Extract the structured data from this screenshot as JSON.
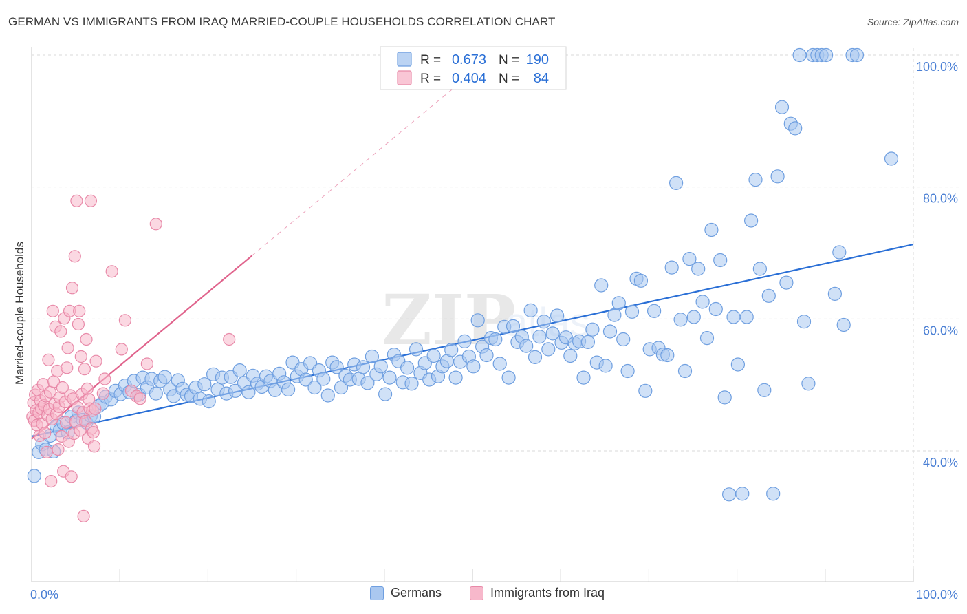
{
  "title": "GERMAN VS IMMIGRANTS FROM IRAQ MARRIED-COUPLE HOUSEHOLDS CORRELATION CHART",
  "source": "Source: ZipAtlas.com",
  "watermark": {
    "zip": "ZIP",
    "atlas": "atlas"
  },
  "legend": {
    "r_label": "R =",
    "n_label": "N =",
    "entries": [
      {
        "name": "Germans",
        "r": "0.673",
        "n": "190",
        "fill": "#aac8f0",
        "stroke": "#6f9fe0"
      },
      {
        "name": "Immigrants from Iraq",
        "r": "0.404",
        "n": "84",
        "fill": "#f7b8cb",
        "stroke": "#e889a8"
      }
    ]
  },
  "chart_data": {
    "type": "scatter",
    "title": "GERMAN VS IMMIGRANTS FROM IRAQ MARRIED-COUPLE HOUSEHOLDS CORRELATION CHART",
    "xlabel": "",
    "ylabel": "Married-couple Households",
    "xlim": [
      0,
      100
    ],
    "ylim": [
      20,
      102
    ],
    "x_tick_labels": [
      "0.0%",
      "100.0%"
    ],
    "y_ticks": [
      40,
      60,
      80,
      100
    ],
    "y_tick_labels": [
      "40.0%",
      "60.0%",
      "80.0%",
      "100.0%"
    ],
    "grid": true,
    "series": [
      {
        "name": "Germans",
        "color": "#6f9fe0",
        "fill": "#aac8f0",
        "trend_color": "#2a6fd6",
        "trend": {
          "x": [
            0,
            100
          ],
          "y": [
            42.2,
            71.3
          ]
        },
        "points": [
          [
            0.3,
            36.2
          ],
          [
            0.8,
            39.8
          ],
          [
            1.2,
            41.0
          ],
          [
            1.6,
            40.2
          ],
          [
            2.1,
            42.3
          ],
          [
            2.5,
            39.9
          ],
          [
            2.8,
            43.8
          ],
          [
            3.2,
            43.1
          ],
          [
            3.6,
            44.2
          ],
          [
            4.1,
            42.8
          ],
          [
            4.5,
            45.2
          ],
          [
            5.0,
            44.5
          ],
          [
            5.3,
            45.8
          ],
          [
            5.8,
            44.7
          ],
          [
            6.2,
            44.3
          ],
          [
            6.7,
            45.3
          ],
          [
            7.1,
            45.2
          ],
          [
            7.6,
            46.8
          ],
          [
            8.0,
            47.2
          ],
          [
            8.4,
            48.2
          ],
          [
            9.0,
            47.8
          ],
          [
            9.5,
            49.1
          ],
          [
            10.1,
            48.6
          ],
          [
            10.6,
            49.9
          ],
          [
            11.1,
            48.9
          ],
          [
            11.6,
            50.6
          ],
          [
            12.2,
            48.5
          ],
          [
            12.6,
            51.1
          ],
          [
            13.1,
            49.6
          ],
          [
            13.6,
            50.9
          ],
          [
            14.1,
            48.7
          ],
          [
            14.6,
            50.6
          ],
          [
            15.1,
            51.2
          ],
          [
            15.7,
            49.3
          ],
          [
            16.1,
            48.3
          ],
          [
            16.6,
            50.7
          ],
          [
            17.1,
            49.4
          ],
          [
            17.6,
            48.5
          ],
          [
            18.1,
            48.3
          ],
          [
            18.6,
            49.6
          ],
          [
            19.1,
            47.9
          ],
          [
            19.6,
            50.1
          ],
          [
            20.1,
            47.5
          ],
          [
            20.6,
            51.6
          ],
          [
            21.1,
            49.3
          ],
          [
            21.6,
            51.1
          ],
          [
            22.1,
            48.7
          ],
          [
            22.6,
            51.2
          ],
          [
            23.1,
            49.1
          ],
          [
            23.6,
            52.2
          ],
          [
            24.1,
            50.3
          ],
          [
            24.6,
            48.9
          ],
          [
            25.1,
            51.4
          ],
          [
            25.6,
            50.2
          ],
          [
            26.1,
            49.7
          ],
          [
            26.6,
            51.3
          ],
          [
            27.1,
            50.6
          ],
          [
            27.6,
            49.2
          ],
          [
            28.1,
            51.7
          ],
          [
            28.6,
            50.4
          ],
          [
            29.1,
            49.3
          ],
          [
            29.6,
            53.4
          ],
          [
            30.1,
            51.3
          ],
          [
            30.6,
            52.4
          ],
          [
            31.1,
            50.8
          ],
          [
            31.6,
            53.3
          ],
          [
            32.1,
            49.6
          ],
          [
            32.6,
            52.2
          ],
          [
            33.1,
            50.9
          ],
          [
            33.6,
            48.4
          ],
          [
            34.1,
            53.4
          ],
          [
            34.6,
            52.7
          ],
          [
            35.1,
            49.6
          ],
          [
            35.6,
            51.4
          ],
          [
            36.1,
            50.8
          ],
          [
            36.6,
            53.1
          ],
          [
            37.1,
            50.9
          ],
          [
            37.6,
            52.7
          ],
          [
            38.1,
            50.3
          ],
          [
            38.6,
            54.3
          ],
          [
            39.1,
            51.6
          ],
          [
            39.6,
            52.8
          ],
          [
            40.1,
            48.6
          ],
          [
            40.6,
            51.1
          ],
          [
            41.1,
            54.6
          ],
          [
            41.6,
            53.6
          ],
          [
            42.1,
            50.4
          ],
          [
            42.6,
            52.6
          ],
          [
            43.1,
            50.2
          ],
          [
            43.6,
            55.4
          ],
          [
            44.1,
            51.8
          ],
          [
            44.6,
            53.3
          ],
          [
            45.1,
            50.8
          ],
          [
            45.6,
            54.4
          ],
          [
            46.1,
            51.3
          ],
          [
            46.6,
            52.8
          ],
          [
            47.1,
            53.6
          ],
          [
            47.6,
            55.3
          ],
          [
            48.1,
            51.1
          ],
          [
            48.6,
            53.5
          ],
          [
            49.1,
            56.6
          ],
          [
            49.6,
            54.3
          ],
          [
            50.1,
            52.8
          ],
          [
            50.6,
            59.8
          ],
          [
            51.1,
            55.8
          ],
          [
            51.6,
            54.5
          ],
          [
            52.1,
            57.1
          ],
          [
            52.6,
            56.9
          ],
          [
            53.1,
            53.2
          ],
          [
            53.6,
            58.8
          ],
          [
            54.1,
            51.1
          ],
          [
            54.6,
            58.9
          ],
          [
            55.1,
            56.5
          ],
          [
            55.6,
            57.3
          ],
          [
            56.1,
            55.9
          ],
          [
            56.6,
            61.3
          ],
          [
            57.1,
            54.2
          ],
          [
            57.6,
            57.3
          ],
          [
            58.1,
            59.6
          ],
          [
            58.6,
            55.4
          ],
          [
            59.1,
            57.8
          ],
          [
            59.6,
            60.5
          ],
          [
            60.1,
            56.4
          ],
          [
            60.6,
            57.2
          ],
          [
            61.1,
            54.4
          ],
          [
            61.6,
            56.3
          ],
          [
            62.1,
            56.6
          ],
          [
            62.6,
            51.1
          ],
          [
            63.1,
            56.5
          ],
          [
            63.6,
            58.4
          ],
          [
            64.1,
            53.4
          ],
          [
            64.6,
            65.1
          ],
          [
            65.1,
            52.9
          ],
          [
            65.6,
            58.1
          ],
          [
            66.1,
            60.6
          ],
          [
            66.6,
            62.4
          ],
          [
            67.1,
            56.9
          ],
          [
            67.6,
            52.1
          ],
          [
            68.1,
            61.1
          ],
          [
            68.6,
            66.1
          ],
          [
            69.1,
            65.8
          ],
          [
            69.6,
            49.1
          ],
          [
            70.1,
            55.4
          ],
          [
            70.6,
            61.2
          ],
          [
            71.1,
            55.6
          ],
          [
            71.6,
            54.6
          ],
          [
            72.1,
            54.5
          ],
          [
            72.6,
            67.8
          ],
          [
            73.1,
            80.6
          ],
          [
            73.6,
            59.9
          ],
          [
            74.1,
            52.1
          ],
          [
            74.6,
            69.1
          ],
          [
            75.1,
            60.3
          ],
          [
            75.6,
            67.6
          ],
          [
            76.1,
            62.6
          ],
          [
            76.6,
            57.1
          ],
          [
            77.1,
            73.5
          ],
          [
            77.6,
            61.5
          ],
          [
            78.1,
            68.9
          ],
          [
            78.6,
            48.1
          ],
          [
            79.1,
            33.4
          ],
          [
            79.6,
            60.3
          ],
          [
            80.1,
            53.1
          ],
          [
            80.6,
            33.5
          ],
          [
            81.1,
            60.3
          ],
          [
            81.6,
            74.9
          ],
          [
            82.1,
            81.1
          ],
          [
            82.6,
            67.6
          ],
          [
            83.1,
            49.2
          ],
          [
            83.6,
            63.5
          ],
          [
            84.1,
            33.5
          ],
          [
            84.6,
            81.6
          ],
          [
            85.1,
            92.1
          ],
          [
            85.6,
            65.5
          ],
          [
            86.1,
            89.6
          ],
          [
            86.6,
            88.9
          ],
          [
            87.1,
            100.0
          ],
          [
            87.6,
            59.6
          ],
          [
            88.1,
            50.2
          ],
          [
            88.6,
            100.0
          ],
          [
            89.1,
            100.0
          ],
          [
            89.6,
            100.0
          ],
          [
            90.1,
            100.0
          ],
          [
            91.1,
            63.8
          ],
          [
            91.6,
            70.1
          ],
          [
            92.1,
            59.1
          ],
          [
            93.1,
            100.0
          ],
          [
            93.6,
            100.0
          ],
          [
            97.5,
            84.3
          ]
        ]
      },
      {
        "name": "Immigrants from Iraq",
        "color": "#e889a8",
        "fill": "#f7b8cb",
        "trend_color": "#e0638c",
        "trend": {
          "x": [
            0,
            25
          ],
          "y": [
            41.8,
            69.6
          ]
        },
        "trend_dashed": {
          "x": [
            25,
            52
          ],
          "y": [
            69.6,
            99.6
          ]
        },
        "points": [
          [
            0.1,
            45.2
          ],
          [
            0.2,
            47.3
          ],
          [
            0.3,
            44.6
          ],
          [
            0.4,
            48.5
          ],
          [
            0.5,
            46.1
          ],
          [
            0.6,
            43.9
          ],
          [
            0.7,
            49.2
          ],
          [
            0.8,
            45.8
          ],
          [
            0.9,
            42.3
          ],
          [
            1.0,
            47.6
          ],
          [
            1.1,
            46.4
          ],
          [
            1.2,
            44.1
          ],
          [
            1.3,
            50.1
          ],
          [
            1.4,
            46.9
          ],
          [
            1.5,
            42.7
          ],
          [
            1.6,
            48.3
          ],
          [
            1.7,
            39.8
          ],
          [
            1.8,
            45.4
          ],
          [
            1.9,
            53.8
          ],
          [
            2.0,
            46.3
          ],
          [
            2.1,
            48.9
          ],
          [
            2.2,
            35.4
          ],
          [
            2.3,
            44.8
          ],
          [
            2.4,
            61.2
          ],
          [
            2.5,
            50.5
          ],
          [
            2.6,
            47.1
          ],
          [
            2.7,
            58.8
          ],
          [
            2.8,
            45.6
          ],
          [
            2.9,
            52.1
          ],
          [
            3.0,
            40.2
          ],
          [
            3.1,
            46.7
          ],
          [
            3.2,
            48.1
          ],
          [
            3.3,
            58.1
          ],
          [
            3.4,
            42.2
          ],
          [
            3.5,
            49.6
          ],
          [
            3.6,
            36.9
          ],
          [
            3.7,
            60.1
          ],
          [
            3.8,
            47.4
          ],
          [
            3.9,
            44.3
          ],
          [
            4.0,
            52.6
          ],
          [
            4.1,
            55.6
          ],
          [
            4.2,
            41.4
          ],
          [
            4.3,
            61.2
          ],
          [
            4.4,
            48.4
          ],
          [
            4.5,
            36.1
          ],
          [
            4.6,
            64.7
          ],
          [
            4.7,
            47.9
          ],
          [
            4.8,
            42.6
          ],
          [
            4.9,
            69.5
          ],
          [
            5.0,
            44.4
          ],
          [
            5.1,
            77.9
          ],
          [
            5.2,
            46.6
          ],
          [
            5.3,
            59.2
          ],
          [
            5.4,
            61.2
          ],
          [
            5.5,
            43.1
          ],
          [
            5.6,
            54.3
          ],
          [
            5.7,
            48.6
          ],
          [
            5.8,
            45.8
          ],
          [
            5.9,
            30.1
          ],
          [
            6.0,
            52.4
          ],
          [
            6.1,
            44.5
          ],
          [
            6.2,
            56.9
          ],
          [
            6.3,
            49.4
          ],
          [
            6.4,
            41.9
          ],
          [
            6.5,
            47.8
          ],
          [
            6.6,
            46.4
          ],
          [
            6.7,
            77.9
          ],
          [
            6.8,
            43.4
          ],
          [
            6.9,
            46.1
          ],
          [
            7.0,
            42.8
          ],
          [
            7.1,
            40.7
          ],
          [
            7.2,
            46.4
          ],
          [
            7.3,
            53.6
          ],
          [
            8.1,
            48.7
          ],
          [
            8.3,
            50.9
          ],
          [
            9.1,
            67.2
          ],
          [
            10.2,
            55.4
          ],
          [
            10.6,
            59.8
          ],
          [
            11.3,
            49.1
          ],
          [
            11.9,
            48.3
          ],
          [
            12.3,
            47.9
          ],
          [
            13.1,
            53.2
          ],
          [
            14.1,
            74.4
          ],
          [
            22.4,
            56.9
          ]
        ]
      }
    ]
  }
}
